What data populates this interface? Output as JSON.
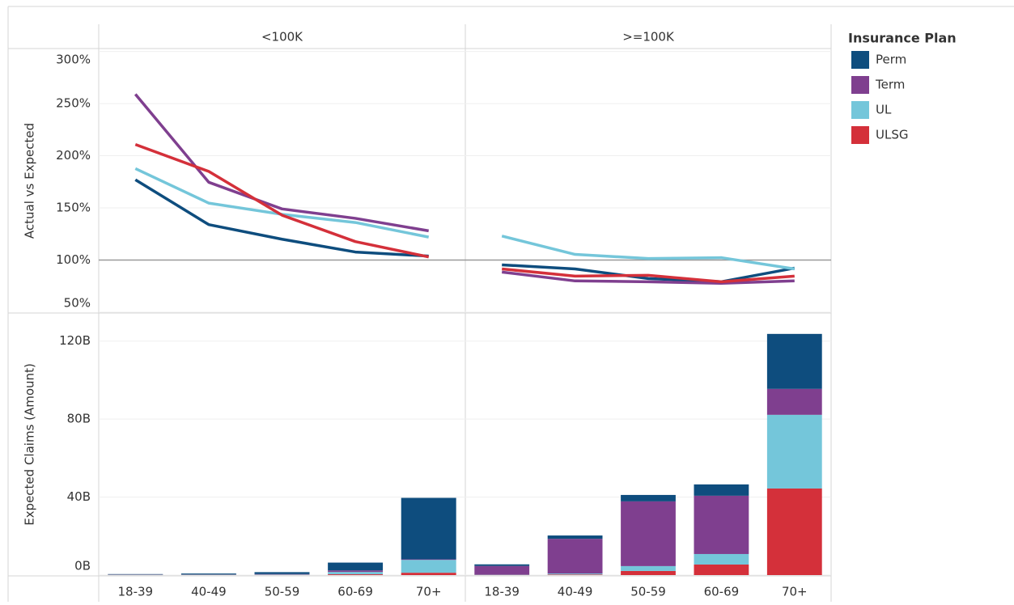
{
  "chart_data": {
    "type": "facet",
    "facets": [
      "<100K",
      ">=100K"
    ],
    "categories": [
      "18-39",
      "40-49",
      "50-59",
      "60-69",
      "70+"
    ],
    "legend_title": "Insurance Plan",
    "legend_position": "right",
    "axes": {
      "line": {
        "type": "line",
        "y_label": "Actual vs Expected",
        "ylim": [
          50,
          302
        ],
        "grid": true,
        "reference_line": 100,
        "yticks": [
          {
            "value": 50,
            "label": "50%"
          },
          {
            "value": 100,
            "label": "100%"
          },
          {
            "value": 150,
            "label": "150%"
          },
          {
            "value": 200,
            "label": "200%"
          },
          {
            "value": 250,
            "label": "250%"
          },
          {
            "value": 300,
            "label": "300%"
          }
        ]
      },
      "bar": {
        "type": "stacked_bar",
        "y_label": "Expected Claims (Amount)",
        "ylim": [
          0,
          134
        ],
        "grid": true,
        "yticks": [
          {
            "value": 0,
            "label": "0B"
          },
          {
            "value": 40,
            "label": "40B"
          },
          {
            "value": 80,
            "label": "80B"
          },
          {
            "value": 120,
            "label": "120B"
          }
        ]
      }
    },
    "series": [
      {
        "name": "Perm",
        "color": "#0e4d7e",
        "values": {
          "line": [
            [
              177,
              134,
              120,
              107.7,
              103.8
            ],
            [
              95.4,
              91.5,
              82.3,
              79.2,
              92.3
            ]
          ],
          "bar": [
            [
              0.2,
              0.5,
              1,
              4,
              31.5
            ],
            [
              0.8,
              1.7,
              3.3,
              5.8,
              28.2
            ]
          ]
        }
      },
      {
        "name": "Term",
        "color": "#7f3f8f",
        "values": {
          "line": [
            [
              259,
              174.6,
              149,
              140,
              128
            ],
            [
              88.5,
              80,
              79.2,
              77.7,
              80
            ]
          ],
          "bar": [
            [
              0.1,
              0.1,
              0.2,
              0.8,
              0.3
            ],
            [
              4.5,
              17.8,
              33.2,
              29.9,
              13.3
            ]
          ]
        }
      },
      {
        "name": "UL",
        "color": "#74c6da",
        "values": {
          "line": [
            [
              187.7,
              154.6,
              143.8,
              136,
              122
            ],
            [
              123,
              105.4,
              101.5,
              102.3,
              91.5
            ]
          ],
          "bar": [
            [
              0.1,
              0.1,
              0.2,
              1.2,
              6.6
            ],
            [
              0.1,
              0.5,
              2.5,
              5.4,
              37.8
            ]
          ]
        }
      },
      {
        "name": "ULSG",
        "color": "#d4303a",
        "values": {
          "line": [
            [
              210.8,
              185,
              143,
              117.7,
              103
            ],
            [
              91.5,
              84.6,
              85.4,
              79.2,
              84.6
            ]
          ],
          "bar": [
            [
              0.1,
              0.1,
              0.1,
              0.4,
              1.2
            ],
            [
              0.1,
              0.3,
              2.1,
              5.4,
              44.4
            ]
          ]
        }
      }
    ]
  }
}
